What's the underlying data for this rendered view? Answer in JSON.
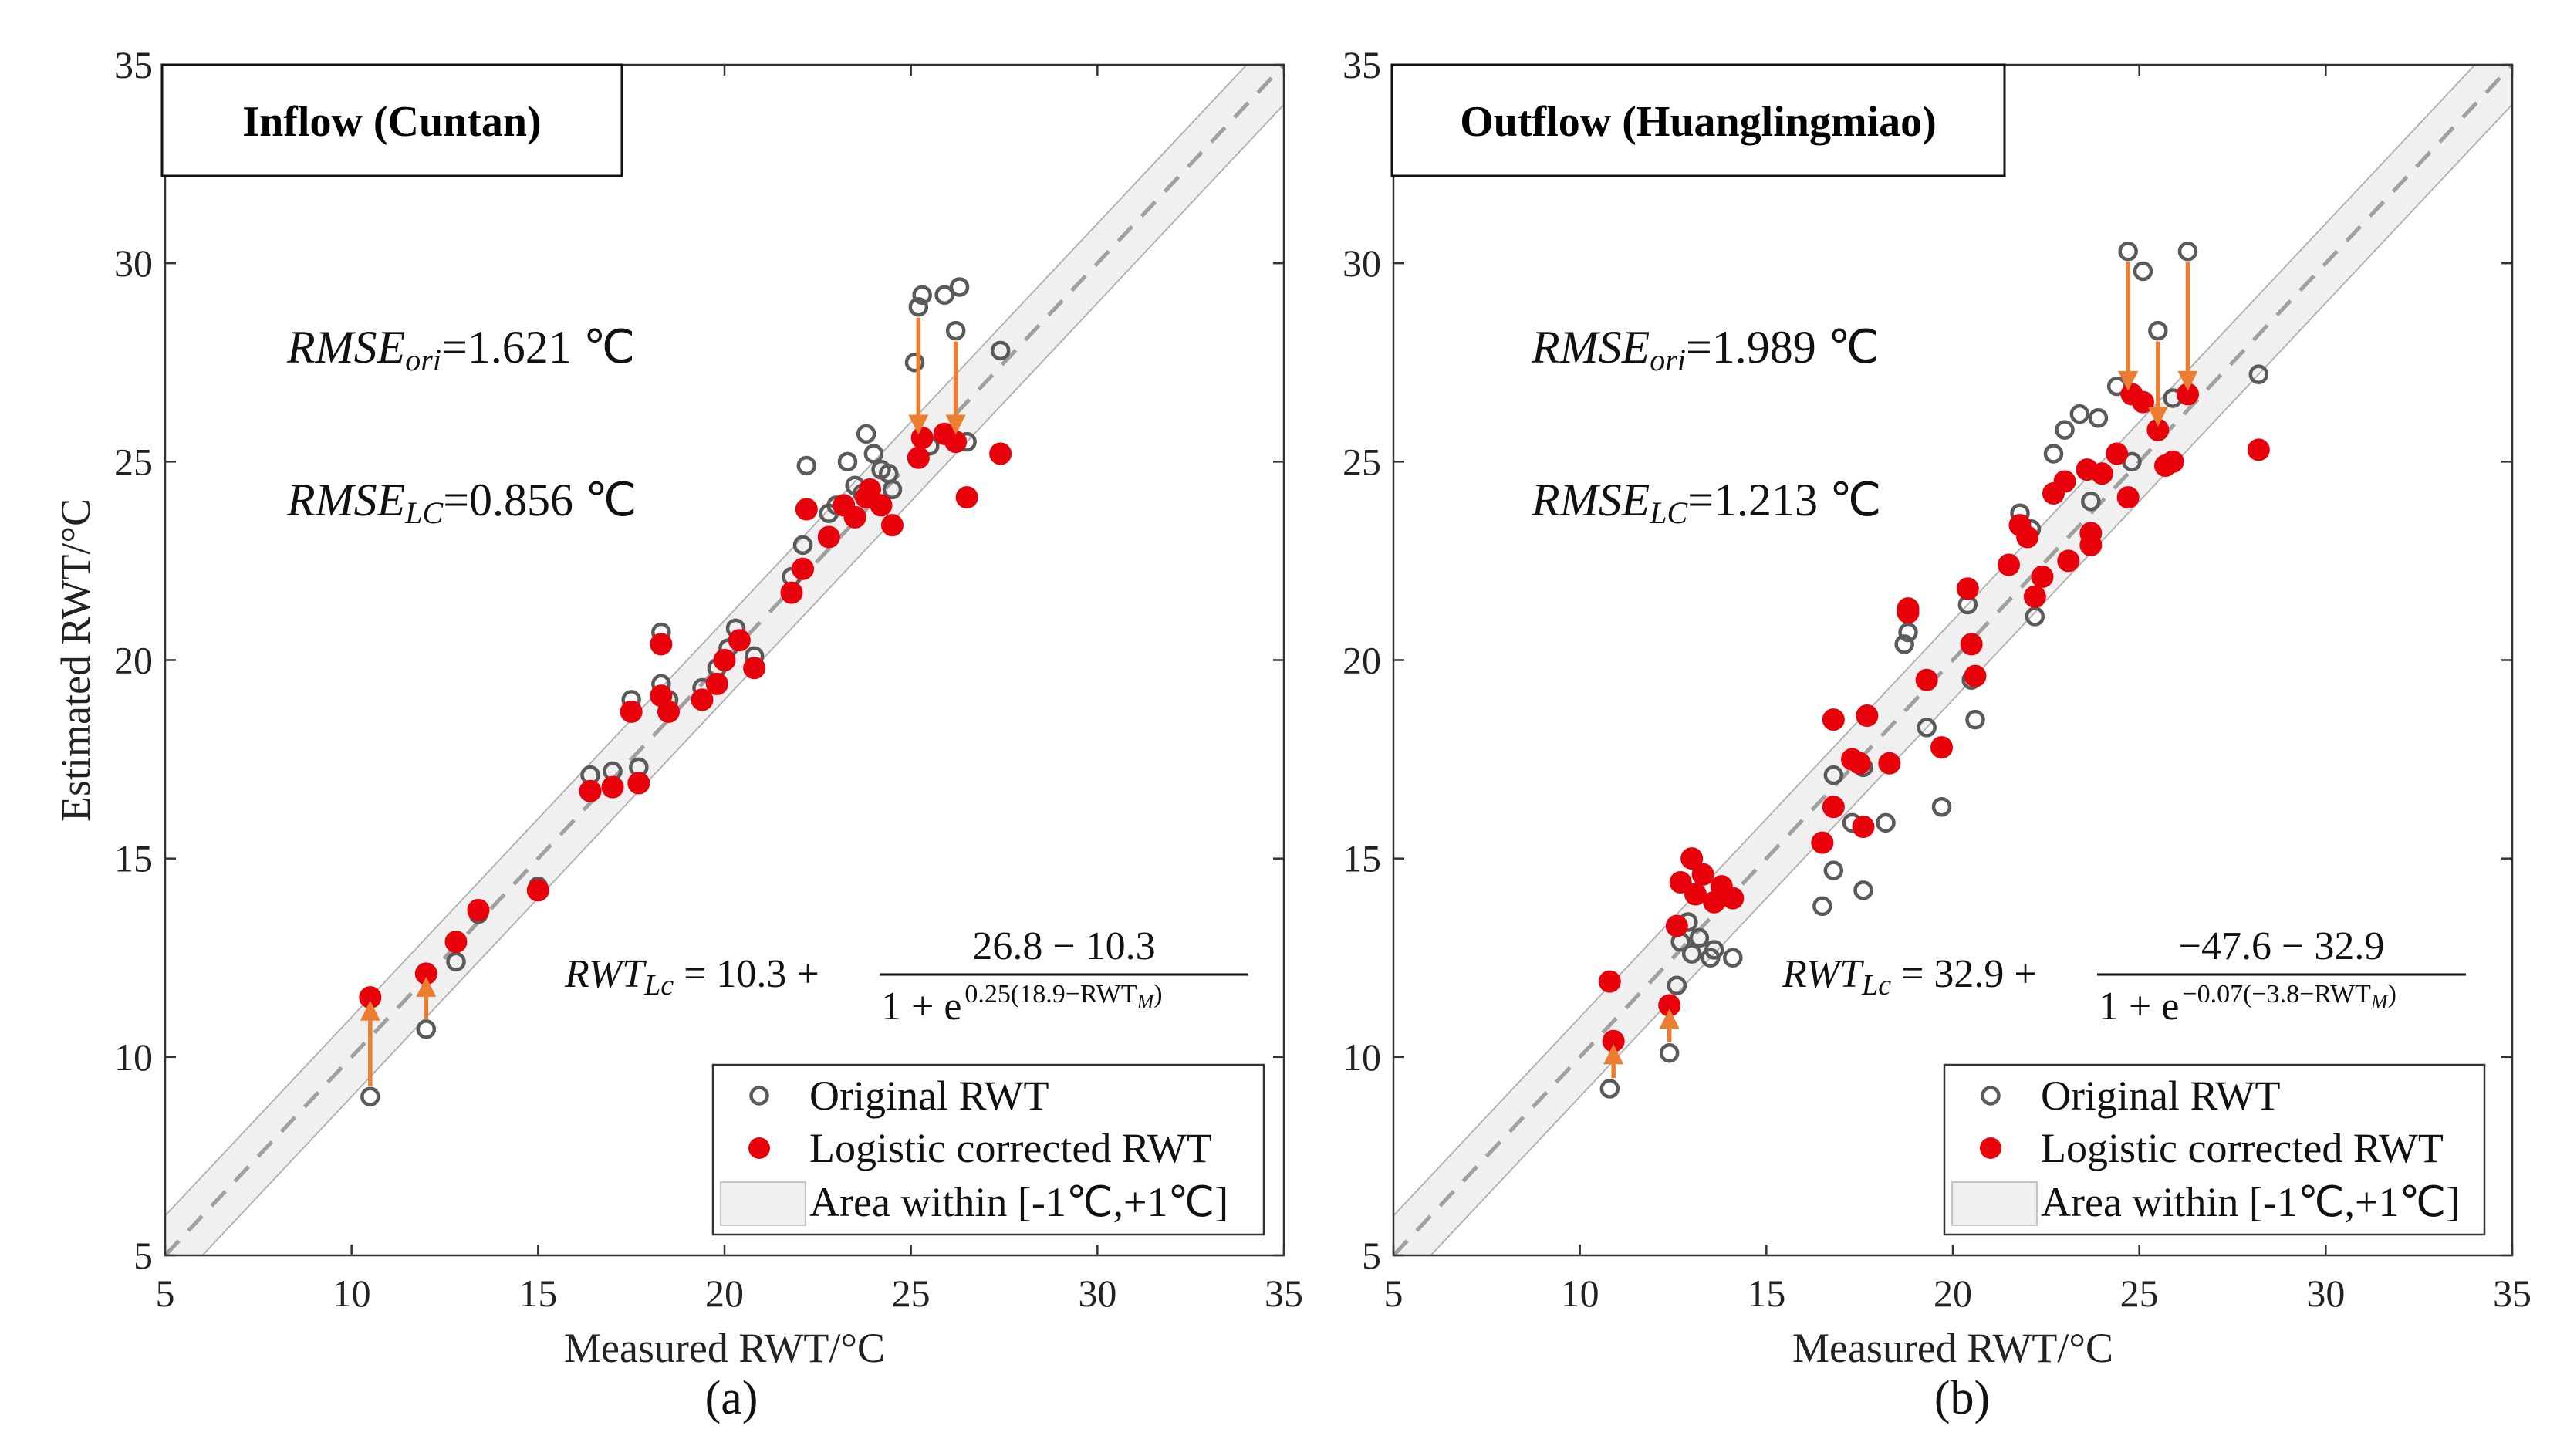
{
  "chart_data": [
    {
      "type": "scatter",
      "title": "Inflow (Cuntan)",
      "xlabel": "Measured RWT/°C",
      "ylabel": "Estimated RWT/°C",
      "xlim": [
        5,
        35
      ],
      "ylim": [
        5,
        35
      ],
      "xticks": [
        5,
        10,
        15,
        20,
        25,
        30,
        35
      ],
      "yticks": [
        5,
        10,
        15,
        20,
        25,
        30,
        35
      ],
      "band": [
        -1,
        1
      ],
      "sublabel": "(a)",
      "rmse_ori": {
        "prefix": "RMSE",
        "sub": "ori",
        "value": "=1.621 ℃"
      },
      "rmse_lc": {
        "prefix": "RMSE",
        "sub": "LC",
        "value": "=0.856 ℃"
      },
      "formula": {
        "lhs": "RWT",
        "lhs_sub": "Lc",
        "const": "= 10.3 +",
        "numerator": "26.8 − 10.3",
        "den_base": "1 + e",
        "exponent": "0.25(18.9−RWT",
        "exp_sub": "M",
        "exp_close": ")"
      },
      "series": [
        {
          "name": "Original RWT",
          "points": [
            [
              10.5,
              9.0
            ],
            [
              12.0,
              10.7
            ],
            [
              12.8,
              12.4
            ],
            [
              13.4,
              13.6
            ],
            [
              15.0,
              14.3
            ],
            [
              16.4,
              17.1
            ],
            [
              17.0,
              17.2
            ],
            [
              17.5,
              19.0
            ],
            [
              17.7,
              17.3
            ],
            [
              18.3,
              19.4
            ],
            [
              18.3,
              20.7
            ],
            [
              18.5,
              19.0
            ],
            [
              19.4,
              19.3
            ],
            [
              19.8,
              19.8
            ],
            [
              20.1,
              20.3
            ],
            [
              20.3,
              20.8
            ],
            [
              20.8,
              20.1
            ],
            [
              21.8,
              22.1
            ],
            [
              22.1,
              22.9
            ],
            [
              22.2,
              24.9
            ],
            [
              22.8,
              23.7
            ],
            [
              23.0,
              23.9
            ],
            [
              23.3,
              25.0
            ],
            [
              23.5,
              24.4
            ],
            [
              23.7,
              24.2
            ],
            [
              23.8,
              25.7
            ],
            [
              24.0,
              25.2
            ],
            [
              24.2,
              24.8
            ],
            [
              24.4,
              24.7
            ],
            [
              24.5,
              24.3
            ],
            [
              25.1,
              27.5
            ],
            [
              25.2,
              28.9
            ],
            [
              25.3,
              29.2
            ],
            [
              25.5,
              25.4
            ],
            [
              25.9,
              29.2
            ],
            [
              26.2,
              28.3
            ],
            [
              26.3,
              29.4
            ],
            [
              26.5,
              25.5
            ],
            [
              27.4,
              27.8
            ]
          ]
        },
        {
          "name": "Logistic corrected RWT",
          "points": [
            [
              10.5,
              11.5
            ],
            [
              12.0,
              12.1
            ],
            [
              12.8,
              12.9
            ],
            [
              13.4,
              13.7
            ],
            [
              15.0,
              14.2
            ],
            [
              16.4,
              16.7
            ],
            [
              17.0,
              16.8
            ],
            [
              17.5,
              18.7
            ],
            [
              17.7,
              16.9
            ],
            [
              18.3,
              19.1
            ],
            [
              18.3,
              20.4
            ],
            [
              18.5,
              18.7
            ],
            [
              19.4,
              19.0
            ],
            [
              19.8,
              19.4
            ],
            [
              20.0,
              20.0
            ],
            [
              20.4,
              20.5
            ],
            [
              20.8,
              19.8
            ],
            [
              21.8,
              21.7
            ],
            [
              22.1,
              22.3
            ],
            [
              22.2,
              23.8
            ],
            [
              22.8,
              23.1
            ],
            [
              23.2,
              23.9
            ],
            [
              23.5,
              23.6
            ],
            [
              23.8,
              24.1
            ],
            [
              23.9,
              24.3
            ],
            [
              24.2,
              23.9
            ],
            [
              24.5,
              23.4
            ],
            [
              25.2,
              25.1
            ],
            [
              25.3,
              25.6
            ],
            [
              25.9,
              25.7
            ],
            [
              26.2,
              25.5
            ],
            [
              26.5,
              24.1
            ],
            [
              27.4,
              25.2
            ]
          ]
        }
      ],
      "arrows": [
        [
          10.5,
          9.0,
          11.5
        ],
        [
          12.0,
          10.7,
          12.1
        ],
        [
          25.2,
          28.9,
          25.6
        ],
        [
          26.2,
          28.3,
          25.6
        ]
      ]
    },
    {
      "type": "scatter",
      "title": "Outflow (Huanglingmiao)",
      "xlabel": "Measured RWT/°C",
      "ylabel": "",
      "xlim": [
        5,
        35
      ],
      "ylim": [
        5,
        35
      ],
      "xticks": [
        5,
        10,
        15,
        20,
        25,
        30,
        35
      ],
      "yticks": [
        5,
        10,
        15,
        20,
        25,
        30,
        35
      ],
      "band": [
        -1,
        1
      ],
      "sublabel": "(b)",
      "rmse_ori": {
        "prefix": "RMSE",
        "sub": "ori",
        "value": "=1.989 ℃"
      },
      "rmse_lc": {
        "prefix": "RMSE",
        "sub": "LC",
        "value": "=1.213 ℃"
      },
      "formula": {
        "lhs": "RWT",
        "lhs_sub": "Lc",
        "const": "= 32.9 +",
        "numerator": "−47.6 − 32.9",
        "den_base": "1 + e",
        "exponent": "−0.07(−3.8−RWT",
        "exp_sub": "M",
        "exp_close": ")"
      },
      "series": [
        {
          "name": "Original RWT",
          "points": [
            [
              10.8,
              9.2
            ],
            [
              12.4,
              10.1
            ],
            [
              12.6,
              11.8
            ],
            [
              12.7,
              12.9
            ],
            [
              12.9,
              13.4
            ],
            [
              13.0,
              12.6
            ],
            [
              13.2,
              13.0
            ],
            [
              13.5,
              12.5
            ],
            [
              13.6,
              12.7
            ],
            [
              14.1,
              12.5
            ],
            [
              16.5,
              13.8
            ],
            [
              16.8,
              17.1
            ],
            [
              16.8,
              14.7
            ],
            [
              17.3,
              15.9
            ],
            [
              17.6,
              14.2
            ],
            [
              17.6,
              17.3
            ],
            [
              18.2,
              15.9
            ],
            [
              18.7,
              20.4
            ],
            [
              18.8,
              20.7
            ],
            [
              19.3,
              18.3
            ],
            [
              19.7,
              16.3
            ],
            [
              20.4,
              21.4
            ],
            [
              20.5,
              19.5
            ],
            [
              20.6,
              18.5
            ],
            [
              21.5,
              22.4
            ],
            [
              21.8,
              23.7
            ],
            [
              22.1,
              23.3
            ],
            [
              22.2,
              21.1
            ],
            [
              22.7,
              25.2
            ],
            [
              23.0,
              25.8
            ],
            [
              23.4,
              26.2
            ],
            [
              23.7,
              24.0
            ],
            [
              23.9,
              26.1
            ],
            [
              24.4,
              26.9
            ],
            [
              24.7,
              30.3
            ],
            [
              24.8,
              25.0
            ],
            [
              25.1,
              29.8
            ],
            [
              25.5,
              28.3
            ],
            [
              25.9,
              26.6
            ],
            [
              26.3,
              30.3
            ],
            [
              28.2,
              27.2
            ]
          ]
        },
        {
          "name": "Logistic corrected RWT",
          "points": [
            [
              10.8,
              11.9
            ],
            [
              10.9,
              10.4
            ],
            [
              12.4,
              11.3
            ],
            [
              12.6,
              13.3
            ],
            [
              12.7,
              14.4
            ],
            [
              13.0,
              15.0
            ],
            [
              13.1,
              14.1
            ],
            [
              13.3,
              14.6
            ],
            [
              13.6,
              13.9
            ],
            [
              13.8,
              14.3
            ],
            [
              14.1,
              14.0
            ],
            [
              16.5,
              15.4
            ],
            [
              16.8,
              16.3
            ],
            [
              16.8,
              18.5
            ],
            [
              17.3,
              17.5
            ],
            [
              17.5,
              17.4
            ],
            [
              17.6,
              15.8
            ],
            [
              17.7,
              18.6
            ],
            [
              18.3,
              17.4
            ],
            [
              18.8,
              21.2
            ],
            [
              18.8,
              21.3
            ],
            [
              19.3,
              19.5
            ],
            [
              19.7,
              17.8
            ],
            [
              20.4,
              21.8
            ],
            [
              20.5,
              20.4
            ],
            [
              20.6,
              19.6
            ],
            [
              21.5,
              22.4
            ],
            [
              21.8,
              23.4
            ],
            [
              22.0,
              23.1
            ],
            [
              22.2,
              21.6
            ],
            [
              22.4,
              22.1
            ],
            [
              22.7,
              24.2
            ],
            [
              23.0,
              24.5
            ],
            [
              23.1,
              22.5
            ],
            [
              23.6,
              24.8
            ],
            [
              23.7,
              23.2
            ],
            [
              23.7,
              22.9
            ],
            [
              24.0,
              24.7
            ],
            [
              24.4,
              25.2
            ],
            [
              24.7,
              24.1
            ],
            [
              24.8,
              26.7
            ],
            [
              25.1,
              26.5
            ],
            [
              25.5,
              25.8
            ],
            [
              25.7,
              24.9
            ],
            [
              25.9,
              25.0
            ],
            [
              26.3,
              26.7
            ],
            [
              28.2,
              25.3
            ]
          ]
        }
      ],
      "arrows": [
        [
          10.9,
          9.2,
          10.4
        ],
        [
          12.4,
          10.1,
          11.3
        ],
        [
          24.7,
          30.3,
          26.7
        ],
        [
          25.5,
          28.3,
          25.8
        ],
        [
          26.3,
          30.3,
          26.7
        ]
      ]
    }
  ],
  "legend": {
    "original": "Original RWT",
    "corrected": "Logistic corrected RWT",
    "band": "Area within [-1℃,+1℃]"
  },
  "colors": {
    "corrected": "#e8000b",
    "original_edge": "#5a5a5a",
    "arrow": "#ed7d31",
    "band": "#f0f0f0",
    "band_edge": "#b4b4b4",
    "diagonal": "#a0a0a0"
  }
}
